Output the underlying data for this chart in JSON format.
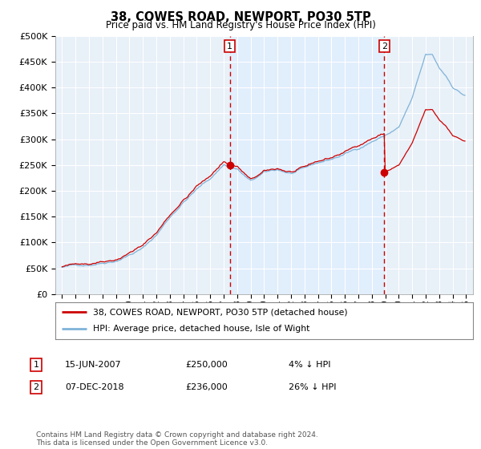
{
  "title": "38, COWES ROAD, NEWPORT, PO30 5TP",
  "subtitle": "Price paid vs. HM Land Registry's House Price Index (HPI)",
  "legend_line1": "38, COWES ROAD, NEWPORT, PO30 5TP (detached house)",
  "legend_line2": "HPI: Average price, detached house, Isle of Wight",
  "annotation1_date": "15-JUN-2007",
  "annotation1_price": "£250,000",
  "annotation1_hpi": "4% ↓ HPI",
  "annotation2_date": "07-DEC-2018",
  "annotation2_price": "£236,000",
  "annotation2_hpi": "26% ↓ HPI",
  "footnote": "Contains HM Land Registry data © Crown copyright and database right 2024.\nThis data is licensed under the Open Government Licence v3.0.",
  "hpi_color": "#7fb3d8",
  "price_color": "#cc0000",
  "vline_color": "#cc0000",
  "shade_color": "#ddeeff",
  "bg_color": "#e8f0f8",
  "ylim": [
    0,
    500000
  ],
  "yticks": [
    0,
    50000,
    100000,
    150000,
    200000,
    250000,
    300000,
    350000,
    400000,
    450000,
    500000
  ],
  "sale1_x": 2007.458,
  "sale1_y": 250000,
  "sale2_x": 2018.917,
  "sale2_y": 236000,
  "xmin": 1994.5,
  "xmax": 2025.5
}
